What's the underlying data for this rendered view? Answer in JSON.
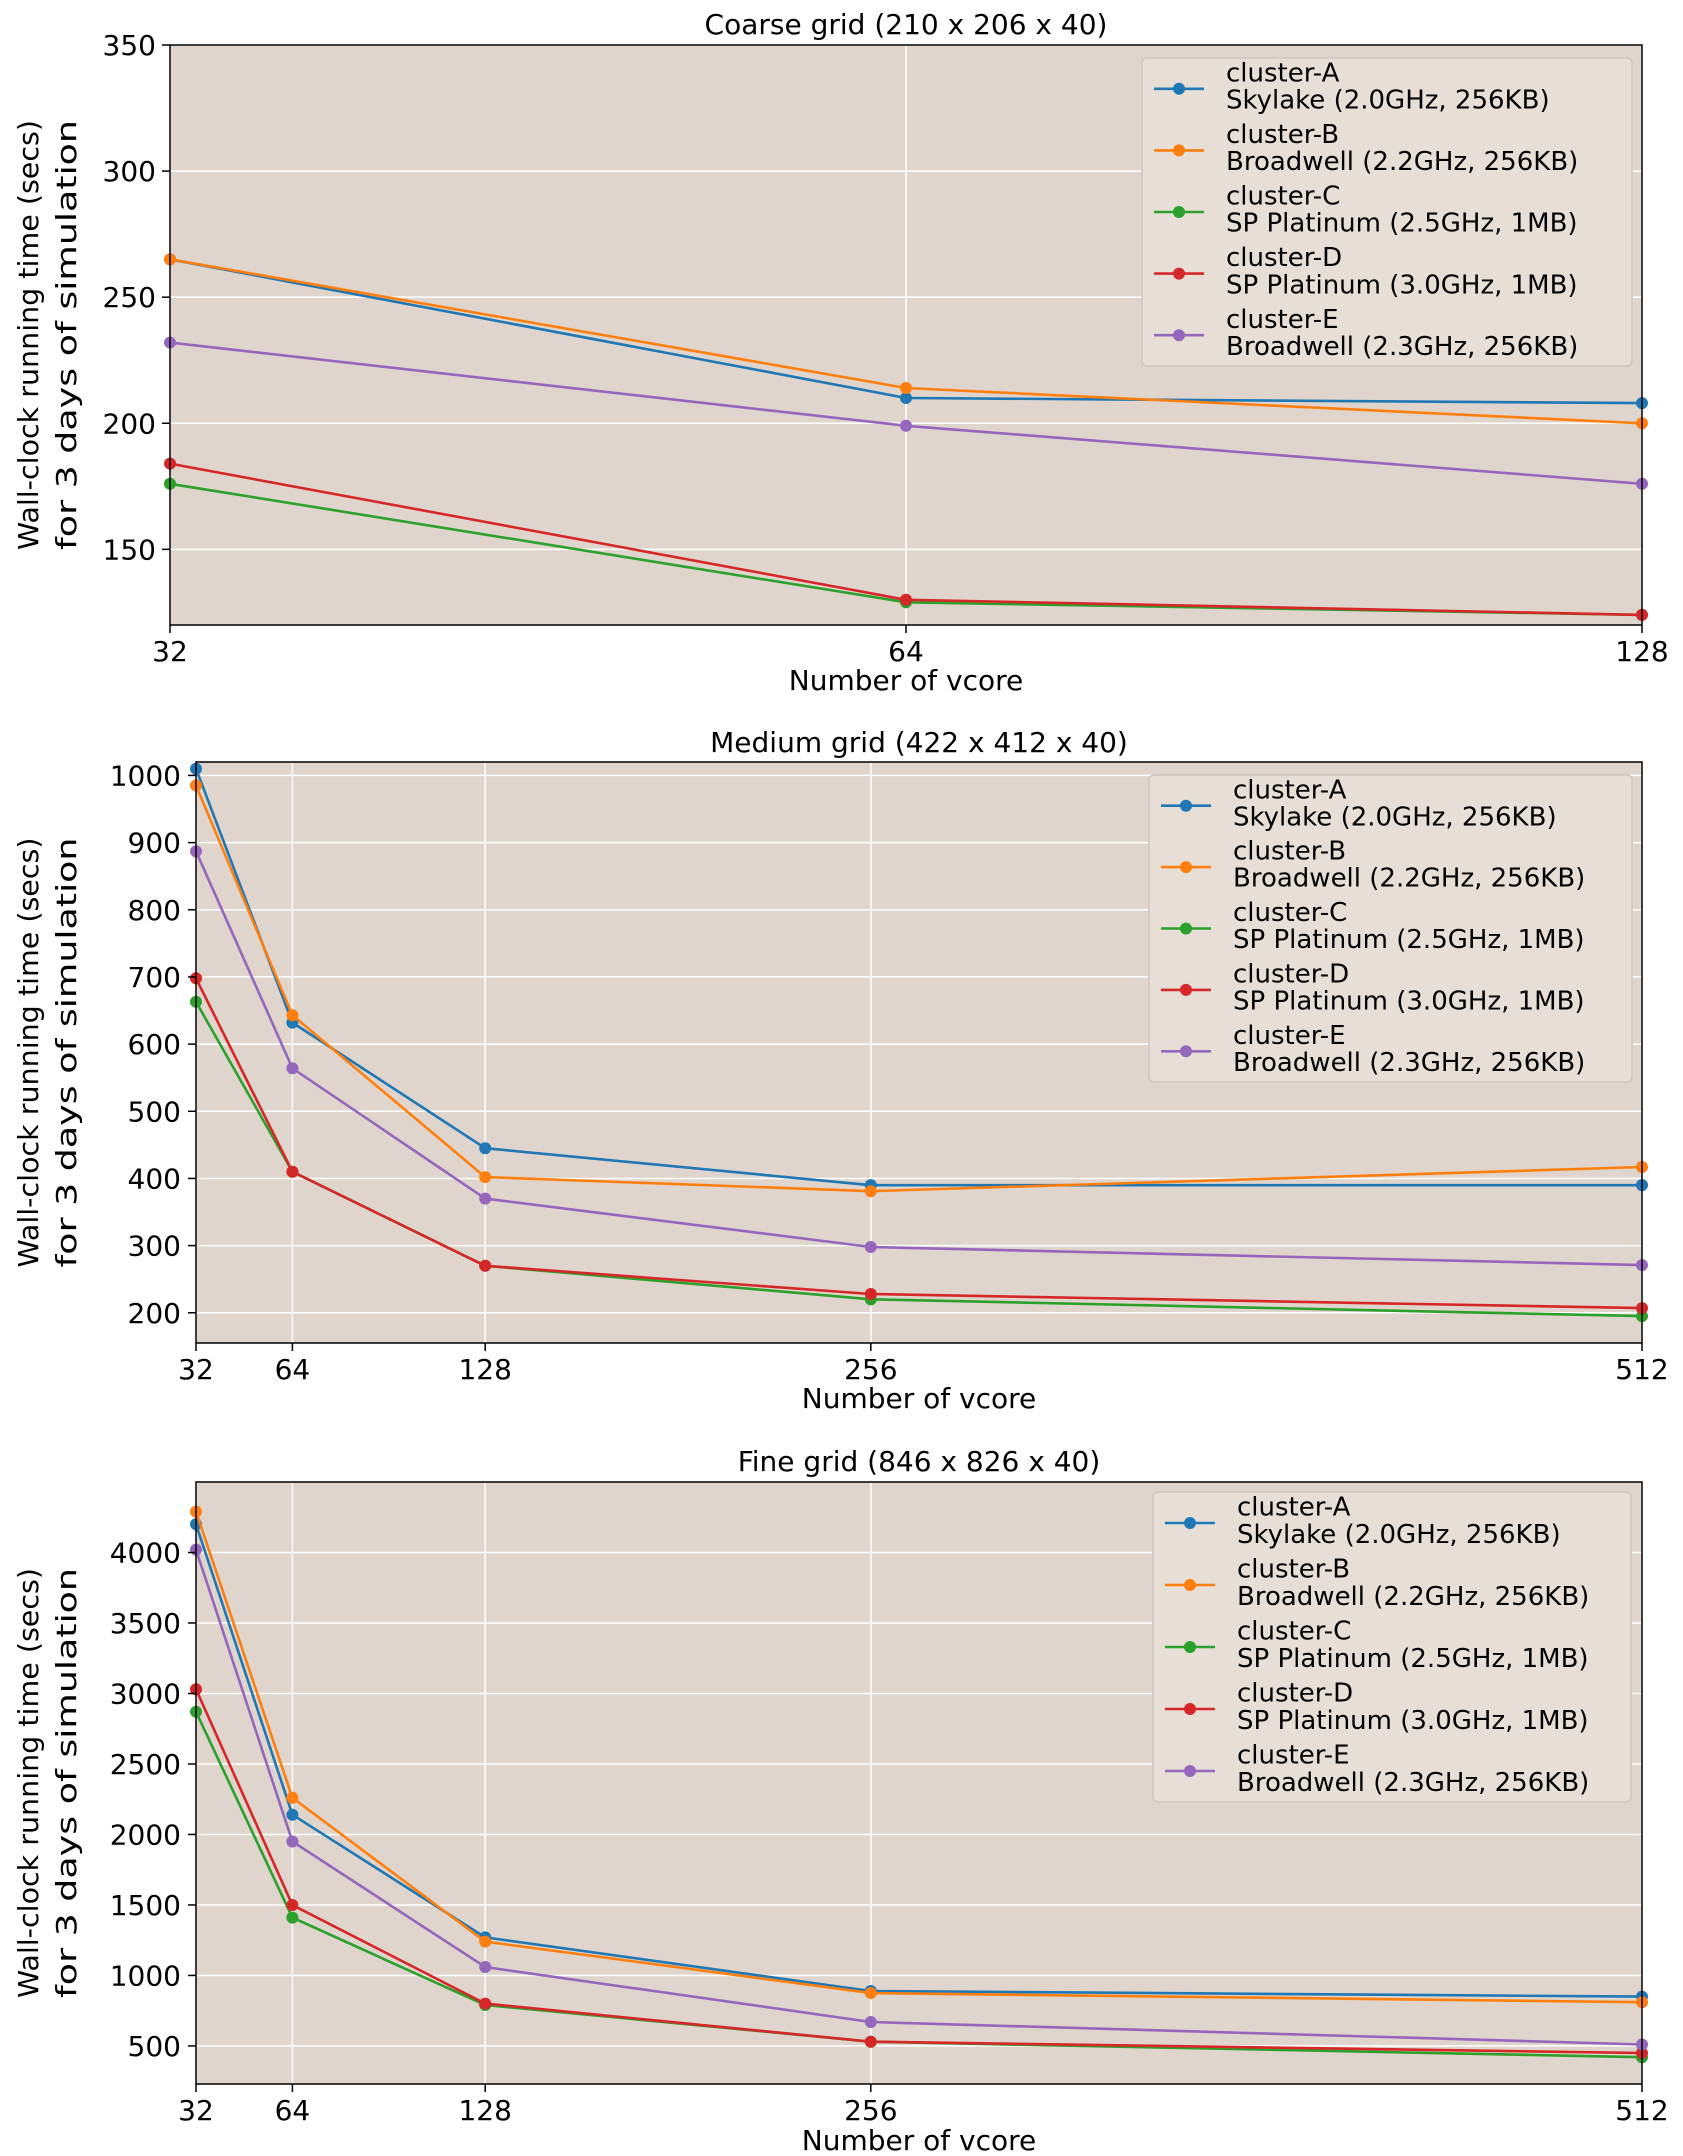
{
  "chart_data": [
    {
      "type": "line",
      "title": "Coarse grid (210 x 206 x 40)",
      "xlabel": "Number of vcore",
      "ylabel": [
        "Wall-clock running time (secs)",
        "for 3 days of simulation"
      ],
      "xscale": "log2",
      "x": [
        32,
        64,
        128
      ],
      "x_ticks": [
        "32",
        "64",
        "128"
      ],
      "xlim": [
        32,
        128
      ],
      "ylim": [
        120,
        350
      ],
      "y_ticks": [
        "150",
        "200",
        "250",
        "300",
        "350"
      ],
      "y_tick_values": [
        150,
        200,
        250,
        300,
        350
      ],
      "grid": true,
      "legend_position": "upper right",
      "series": [
        {
          "name": "cluster-A",
          "label": "Skylake (2.0GHz, 256KB)",
          "values": [
            265,
            210,
            208
          ]
        },
        {
          "name": "cluster-B",
          "label": "Broadwell (2.2GHz, 256KB)",
          "values": [
            265,
            214,
            200
          ]
        },
        {
          "name": "cluster-C",
          "label": "SP Platinum (2.5GHz, 1MB)",
          "values": [
            176,
            129,
            124
          ]
        },
        {
          "name": "cluster-D",
          "label": "SP Platinum (3.0GHz, 1MB)",
          "values": [
            184,
            130,
            124
          ]
        },
        {
          "name": "cluster-E",
          "label": "Broadwell (2.3GHz, 256KB)",
          "values": [
            232,
            199,
            176
          ]
        }
      ]
    },
    {
      "type": "line",
      "title": "Medium grid (422 x 412 x 40)",
      "xlabel": "Number of vcore",
      "ylabel": [
        "Wall-clock running time (secs)",
        "for 3 days of simulation"
      ],
      "xscale": "linear",
      "x": [
        32,
        64,
        128,
        256,
        512
      ],
      "x_ticks": [
        "32",
        "64",
        "128",
        "256",
        "512"
      ],
      "xlim": [
        32,
        512
      ],
      "ylim": [
        155,
        1020
      ],
      "y_ticks": [
        "200",
        "300",
        "400",
        "500",
        "600",
        "700",
        "800",
        "900",
        "1000"
      ],
      "y_tick_values": [
        200,
        300,
        400,
        500,
        600,
        700,
        800,
        900,
        1000
      ],
      "grid": true,
      "legend_position": "upper right",
      "series": [
        {
          "name": "cluster-A",
          "label": "Skylake (2.0GHz, 256KB)",
          "values": [
            1010,
            632,
            445,
            390,
            390
          ]
        },
        {
          "name": "cluster-B",
          "label": "Broadwell (2.2GHz, 256KB)",
          "values": [
            985,
            643,
            402,
            381,
            417
          ]
        },
        {
          "name": "cluster-C",
          "label": "SP Platinum (2.5GHz, 1MB)",
          "values": [
            663,
            410,
            270,
            220,
            195
          ]
        },
        {
          "name": "cluster-D",
          "label": "SP Platinum (3.0GHz, 1MB)",
          "values": [
            698,
            410,
            270,
            228,
            207
          ]
        },
        {
          "name": "cluster-E",
          "label": "Broadwell (2.3GHz, 256KB)",
          "values": [
            887,
            564,
            370,
            298,
            271
          ]
        }
      ]
    },
    {
      "type": "line",
      "title": "Fine grid (846 x 826 x 40)",
      "xlabel": "Number of vcore",
      "ylabel": [
        "Wall-clock running time (secs)",
        "for 3 days of simulation"
      ],
      "xscale": "linear",
      "x": [
        32,
        64,
        128,
        256,
        512
      ],
      "x_ticks": [
        "32",
        "64",
        "128",
        "256",
        "512"
      ],
      "xlim": [
        32,
        512
      ],
      "ylim": [
        230,
        4500
      ],
      "y_ticks": [
        "500",
        "1000",
        "1500",
        "2000",
        "2500",
        "3000",
        "3500",
        "4000"
      ],
      "y_tick_values": [
        500,
        1000,
        1500,
        2000,
        2500,
        3000,
        3500,
        4000
      ],
      "grid": true,
      "legend_position": "upper right",
      "series": [
        {
          "name": "cluster-A",
          "label": "Skylake (2.0GHz, 256KB)",
          "values": [
            4200,
            2140,
            1270,
            890,
            850
          ]
        },
        {
          "name": "cluster-B",
          "label": "Broadwell (2.2GHz, 256KB)",
          "values": [
            4290,
            2260,
            1240,
            875,
            810
          ]
        },
        {
          "name": "cluster-C",
          "label": "SP Platinum (2.5GHz, 1MB)",
          "values": [
            2870,
            1410,
            790,
            530,
            420
          ]
        },
        {
          "name": "cluster-D",
          "label": "SP Platinum (3.0GHz, 1MB)",
          "values": [
            3030,
            1500,
            800,
            530,
            450
          ]
        },
        {
          "name": "cluster-E",
          "label": "Broadwell (2.3GHz, 256KB)",
          "values": [
            4020,
            1950,
            1060,
            670,
            510
          ]
        }
      ]
    }
  ],
  "colors": {
    "cluster-A": "#1f77b4",
    "cluster-B": "#ff7f0e",
    "cluster-C": "#2ca02c",
    "cluster-D": "#d62728",
    "cluster-E": "#9467bd",
    "plot_background": "#dfd5cc",
    "legend_background": "#e7ded6",
    "grid": "#ffffff"
  }
}
